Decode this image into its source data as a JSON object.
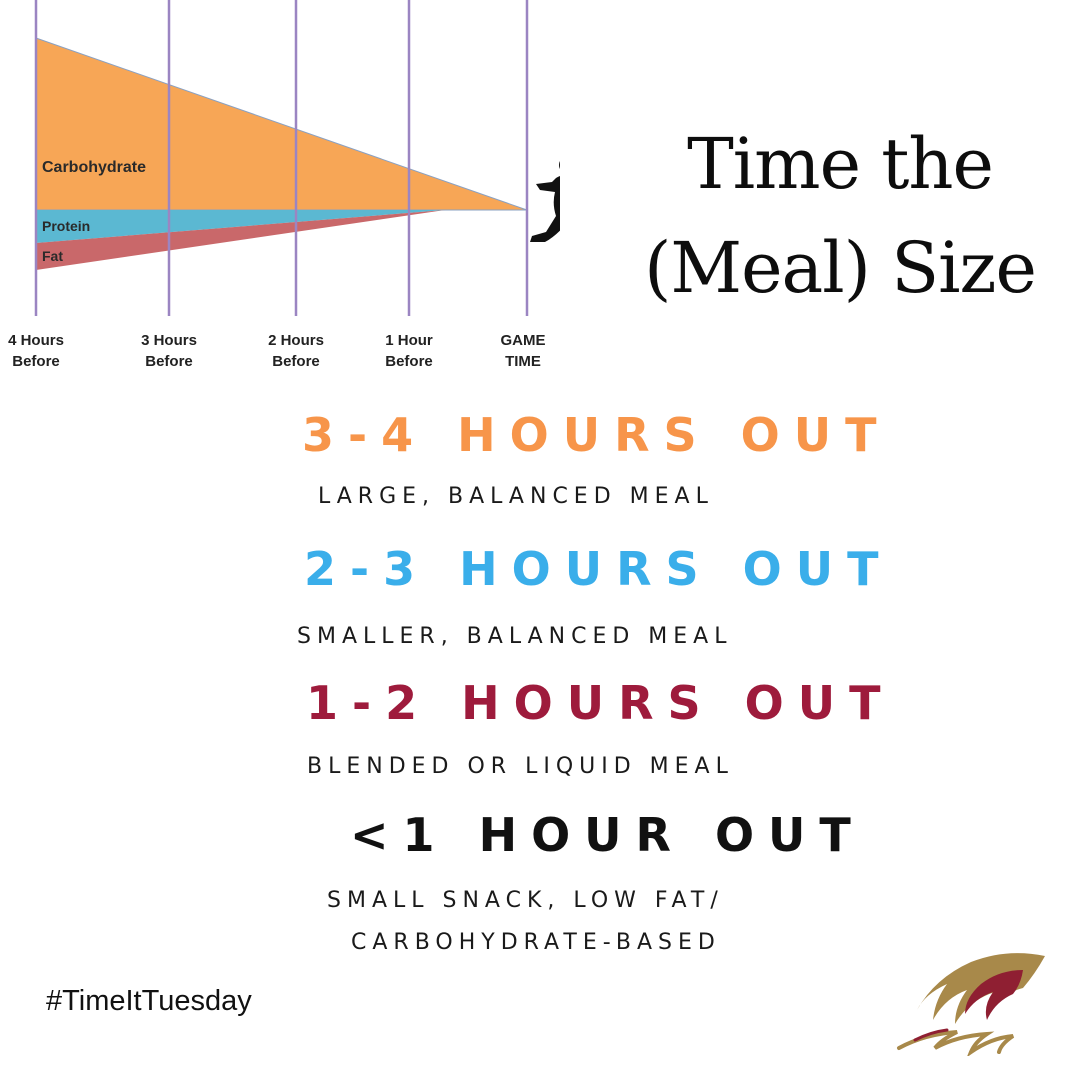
{
  "graphic": {
    "bands": [
      {
        "label": "Carbohydrate",
        "color": "#f7a656"
      },
      {
        "label": "Protein",
        "color": "#5bb8d2"
      },
      {
        "label": "Fat",
        "color": "#c9686a"
      }
    ],
    "time_labels": [
      {
        "line1": "4 Hours",
        "line2": "Before"
      },
      {
        "line1": "3 Hours",
        "line2": "Before"
      },
      {
        "line1": "2 Hours",
        "line2": "Before"
      },
      {
        "line1": "1 Hour",
        "line2": "Before"
      },
      {
        "line1": "GAME",
        "line2": "TIME"
      }
    ],
    "gridline_color": "#9b85c2",
    "runner_icon": "baseball-player-silhouette-icon"
  },
  "title": {
    "line1": "Time the",
    "line2": "(Meal) Size"
  },
  "guide": [
    {
      "heading": "3-4 HOURS OUT",
      "color": "#f7954a",
      "description": [
        "LARGE, BALANCED MEAL"
      ]
    },
    {
      "heading": "2-3 HOURS OUT",
      "color": "#3aaeea",
      "description": [
        "SMALLER, BALANCED MEAL"
      ]
    },
    {
      "heading": "1-2 HOURS OUT",
      "color": "#9e1b3c",
      "description": [
        "BLENDED OR LIQUID MEAL"
      ]
    },
    {
      "heading": "<1 HOUR OUT",
      "color": "#111111",
      "description": [
        "SMALL SNACK, LOW FAT/",
        "CARBOHYDRATE-BASED"
      ]
    }
  ],
  "hashtag": "#TimeItTuesday",
  "logo": {
    "icon": "team-logo-icon",
    "colors": [
      "#a8894a",
      "#8f1f32"
    ]
  }
}
